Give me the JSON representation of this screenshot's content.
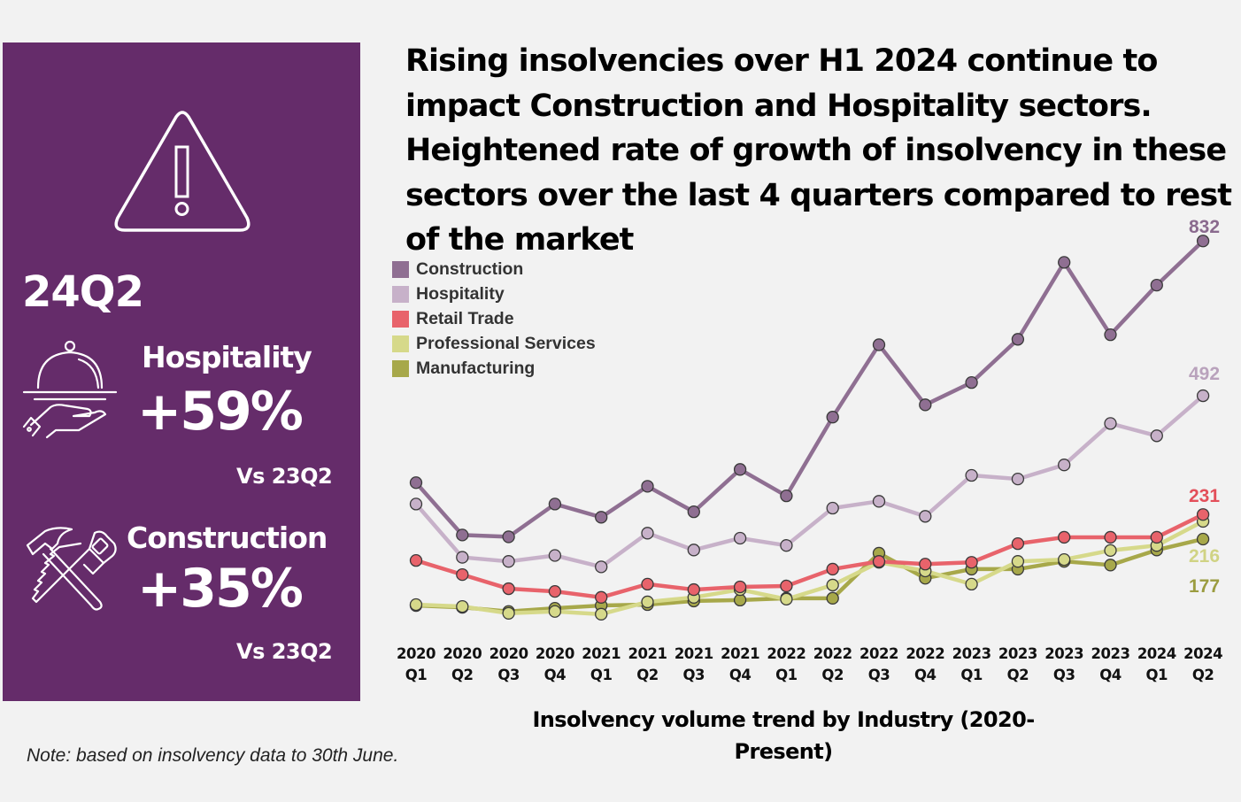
{
  "panel": {
    "quarter": "24Q2",
    "sectors": [
      {
        "name": "Hospitality",
        "change": "+59%",
        "comparison": "Vs 23Q2",
        "icon": "serving-cloche-icon"
      },
      {
        "name": "Construction",
        "change": "+35%",
        "comparison": "Vs 23Q2",
        "icon": "hammer-saw-icon"
      }
    ],
    "alert_icon": "warning-triangle-icon",
    "background_color": "#652c6a"
  },
  "headline": "Rising insolvencies over H1 2024 continue to impact Construction and Hospitality sectors. Heightened rate of growth of insolvency in these sectors over the last 4 quarters compared to rest of the market",
  "note": "Note: based on insolvency data to 30th June.",
  "chart_data": {
    "type": "line",
    "title": "Insolvency volume trend by Industry (2020-Present)",
    "xlabel": "",
    "ylabel": "",
    "ylim": [
      0,
      900
    ],
    "grid": false,
    "legend_position": "top-left",
    "categories": [
      [
        "2020",
        "Q1"
      ],
      [
        "2020",
        "Q2"
      ],
      [
        "2020",
        "Q3"
      ],
      [
        "2020",
        "Q4"
      ],
      [
        "2021",
        "Q1"
      ],
      [
        "2021",
        "Q2"
      ],
      [
        "2021",
        "Q3"
      ],
      [
        "2021",
        "Q4"
      ],
      [
        "2022",
        "Q1"
      ],
      [
        "2022",
        "Q2"
      ],
      [
        "2022",
        "Q3"
      ],
      [
        "2022",
        "Q4"
      ],
      [
        "2023",
        "Q1"
      ],
      [
        "2023",
        "Q2"
      ],
      [
        "2023",
        "Q3"
      ],
      [
        "2023",
        "Q4"
      ],
      [
        "2024",
        "Q1"
      ],
      [
        "2024",
        "Q2"
      ]
    ],
    "series": [
      {
        "name": "Construction",
        "color": "#8f6f92",
        "label_color": "#8a6a8e",
        "end_label": "832",
        "values": [
          301,
          186,
          182,
          254,
          225,
          293,
          237,
          330,
          272,
          445,
          604,
          472,
          521,
          616,
          785,
          626,
          735,
          832
        ]
      },
      {
        "name": "Hospitality",
        "color": "#c7b1c9",
        "label_color": "#b9a2bc",
        "end_label": "492",
        "values": [
          254,
          137,
          128,
          141,
          116,
          190,
          153,
          179,
          163,
          245,
          260,
          227,
          317,
          309,
          340,
          431,
          404,
          492
        ]
      },
      {
        "name": "Retail Trade",
        "color": "#e8636b",
        "label_color": "#e34f5a",
        "end_label": "231",
        "values": [
          130,
          99,
          68,
          62,
          49,
          78,
          66,
          72,
          74,
          111,
          128,
          122,
          126,
          167,
          181,
          181,
          181,
          231
        ]
      },
      {
        "name": "Professional Services",
        "color": "#d6d98a",
        "label_color": "#d0d384",
        "end_label": "216",
        "values": [
          33,
          29,
          14,
          18,
          12,
          39,
          49,
          66,
          45,
          76,
          126,
          107,
          78,
          128,
          132,
          152,
          163,
          216
        ]
      },
      {
        "name": "Manufacturing",
        "color": "#a7a84a",
        "label_color": "#9b9c40",
        "end_label": "177",
        "values": [
          31,
          27,
          18,
          25,
          31,
          33,
          41,
          43,
          47,
          47,
          146,
          91,
          111,
          111,
          128,
          120,
          153,
          177
        ]
      }
    ]
  }
}
